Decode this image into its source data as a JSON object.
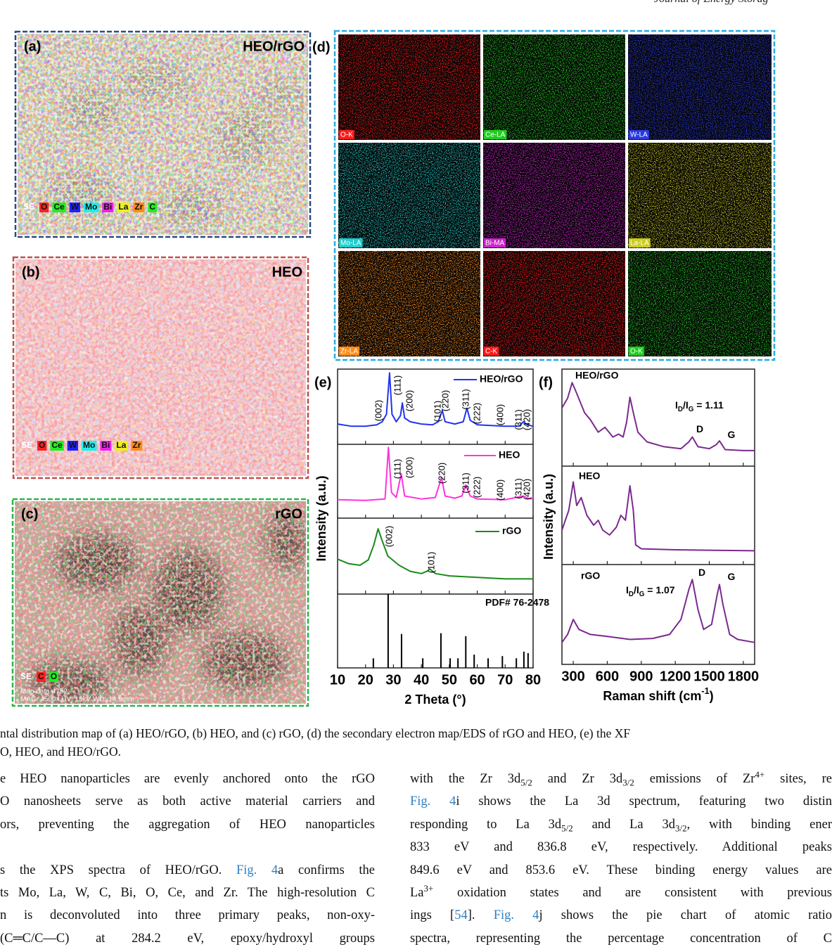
{
  "header": {
    "journal": "Journal of Energy Storag"
  },
  "panels": [
    {
      "label": "(a)",
      "title": "HEO/rGO",
      "border": "#2a4a80",
      "legend": [
        {
          "text": "SE"
        },
        {
          "text": "O",
          "color": "#ff2020"
        },
        {
          "text": "Ce",
          "color": "#20ee20"
        },
        {
          "text": "W",
          "color": "#2020ff"
        },
        {
          "text": "Mo",
          "color": "#20eeee"
        },
        {
          "text": "Bi",
          "color": "#ee20ee"
        },
        {
          "text": "La",
          "color": "#eeee20"
        },
        {
          "text": "Zr",
          "color": "#ff8a1a"
        },
        {
          "text": "C",
          "color": "#20ee20"
        }
      ]
    },
    {
      "label": "(b)",
      "title": "HEO",
      "border": "#c0504d",
      "legend": [
        {
          "text": "SE"
        },
        {
          "text": "O",
          "color": "#ff2020"
        },
        {
          "text": "Ce",
          "color": "#20ee20"
        },
        {
          "text": "W",
          "color": "#2020ff"
        },
        {
          "text": "Mo",
          "color": "#20eeee"
        },
        {
          "text": "Bi",
          "color": "#ee20ee"
        },
        {
          "text": "La",
          "color": "#eeee20"
        },
        {
          "text": "Zr",
          "color": "#ff8a1a"
        }
      ]
    },
    {
      "label": "(c)",
      "title": "rGO",
      "border": "#2db34a",
      "legend": [
        {
          "text": "SE"
        },
        {
          "text": "C",
          "color": "#ff2020"
        },
        {
          "text": "O",
          "color": "#20ee20"
        }
      ],
      "notes": [
        "Map data 4752",
        "MAG: 4500x  HV: 15kV  WD: 14.9mm"
      ]
    }
  ],
  "eds": {
    "label": "(d)",
    "border": "#29abe2",
    "tiles": [
      {
        "name": "O-K",
        "color": "#ff1a1a"
      },
      {
        "name": "Ce-LA",
        "color": "#22cc22"
      },
      {
        "name": "W-LA",
        "color": "#2a3ae0"
      },
      {
        "name": "Mo-LA",
        "color": "#22cccc"
      },
      {
        "name": "Bi-MA",
        "color": "#cc22cc"
      },
      {
        "name": "La-LA",
        "color": "#cccc22"
      },
      {
        "name": "Zr-LA",
        "color": "#ff8c1a"
      },
      {
        "name": "C-K",
        "color": "#ff1a1a"
      },
      {
        "name": "O-K",
        "color": "#22cc22"
      }
    ]
  },
  "chart_data": [
    {
      "type": "line",
      "label": "(e)",
      "xlabel": "2 Theta (°)",
      "ylabel": "Intensity (a.u.)",
      "xlim": [
        10,
        80
      ],
      "xticks": [
        10,
        20,
        30,
        40,
        50,
        60,
        70,
        80
      ],
      "ylim": [
        0,
        100
      ],
      "series": [
        {
          "name": "HEO/rGO",
          "color": "#2233ee",
          "x": [
            10,
            15,
            20,
            24,
            26,
            27.5,
            28.6,
            29.5,
            31,
            32.5,
            33.2,
            34,
            36,
            40,
            44,
            46,
            47.5,
            48.5,
            52,
            55,
            56.3,
            57.5,
            60,
            65,
            70,
            75,
            76.5,
            78,
            80
          ],
          "values": [
            27,
            24,
            24,
            26,
            30,
            40,
            95,
            40,
            30,
            38,
            55,
            35,
            30,
            27,
            26,
            30,
            45,
            30,
            27,
            30,
            48,
            32,
            26,
            25,
            24,
            24,
            30,
            26,
            24
          ]
        },
        {
          "name": "HEO",
          "color": "#ff33dd",
          "x": [
            10,
            20,
            27,
            28.2,
            29.3,
            31,
            32.8,
            34,
            40,
            45,
            47.2,
            48.5,
            52,
            54.5,
            55.9,
            57.5,
            60,
            70,
            76.5,
            78,
            80
          ],
          "values": [
            25,
            24,
            26,
            96,
            35,
            28,
            60,
            30,
            26,
            28,
            55,
            30,
            27,
            30,
            45,
            30,
            26,
            25,
            30,
            27,
            26
          ]
        },
        {
          "name": "rGO",
          "color": "#1a8a1a",
          "x": [
            10,
            14,
            18,
            21,
            23,
            24.5,
            26,
            28,
            32,
            36,
            40,
            42,
            43,
            45,
            50,
            60,
            70,
            80
          ],
          "values": [
            46,
            40,
            38,
            45,
            65,
            86,
            70,
            50,
            38,
            30,
            27,
            30,
            33,
            27,
            24,
            22,
            20,
            20
          ]
        }
      ],
      "reference": {
        "name": "PDF# 76-2478",
        "color": "#000000",
        "x": [
          22.8,
          28.1,
          32.9,
          40.5,
          47.0,
          50.3,
          53.1,
          55.9,
          58.9,
          63.9,
          69.0,
          74.0,
          76.7,
          78.2
        ],
        "values": [
          13,
          100,
          46,
          13,
          47,
          13,
          13,
          43,
          18,
          13,
          16,
          13,
          22,
          20
        ]
      },
      "annotations": [
        "(002)",
        "(111)",
        "(200)",
        "(101)",
        "(220)",
        "(311)",
        "(222)",
        "(400)",
        "(311)",
        "(420)",
        "(111)",
        "(200)",
        "(220)",
        "(311)",
        "(222)",
        "(400)",
        "(311)",
        "(420)",
        "(002)",
        "(101)"
      ]
    },
    {
      "type": "line",
      "label": "(f)",
      "ylabel": "Intensity (a.u.)",
      "xlabel_parts": [
        {
          "t": "Raman shift (cm"
        },
        {
          "t": "-1",
          "style": "sup"
        },
        {
          "t": ")"
        }
      ],
      "xlim": [
        200,
        1900
      ],
      "xticks": [
        300,
        600,
        900,
        1200,
        1500,
        1800
      ],
      "ylim": [
        0,
        100
      ],
      "series": [
        {
          "name": "HEO/rGO",
          "color": "#7a2a8e",
          "x": [
            200,
            250,
            290,
            330,
            400,
            450,
            520,
            580,
            650,
            700,
            740,
            770,
            800,
            830,
            870,
            950,
            1100,
            1250,
            1320,
            1350,
            1400,
            1500,
            1560,
            1590,
            1640,
            1800,
            1900
          ],
          "values": [
            60,
            70,
            86,
            75,
            55,
            48,
            35,
            40,
            30,
            33,
            30,
            45,
            71,
            55,
            35,
            25,
            20,
            18,
            25,
            30,
            20,
            18,
            22,
            26,
            17,
            16,
            16
          ]
        },
        {
          "name": "HEO",
          "color": "#7a2a8e",
          "x": [
            200,
            260,
            300,
            330,
            370,
            420,
            480,
            520,
            560,
            620,
            680,
            720,
            760,
            800,
            830,
            850,
            900,
            1200,
            1900
          ],
          "values": [
            35,
            55,
            84,
            60,
            68,
            50,
            40,
            45,
            35,
            30,
            38,
            50,
            45,
            80,
            55,
            20,
            16,
            15,
            14
          ]
        },
        {
          "name": "rGO",
          "color": "#7a2a8e",
          "x": [
            200,
            250,
            300,
            350,
            450,
            600,
            800,
            1000,
            1150,
            1250,
            1320,
            1350,
            1400,
            1450,
            1520,
            1570,
            1590,
            1620,
            1680,
            1750,
            1900
          ],
          "values": [
            22,
            30,
            45,
            35,
            30,
            28,
            25,
            26,
            30,
            45,
            75,
            85,
            55,
            35,
            40,
            70,
            80,
            60,
            30,
            25,
            22
          ]
        }
      ],
      "annotations": [
        [
          {
            "t": "I"
          },
          {
            "t": "D",
            "style": "sub"
          },
          {
            "t": "/I"
          },
          {
            "t": "G",
            "style": "sub"
          },
          {
            "t": " = 1.11"
          }
        ],
        [
          {
            "t": "D"
          }
        ],
        [
          {
            "t": "G"
          }
        ],
        [
          {
            "t": "D"
          }
        ],
        [
          {
            "t": "G"
          }
        ],
        [
          {
            "t": "I"
          },
          {
            "t": "D",
            "style": "sub"
          },
          {
            "t": "/I"
          },
          {
            "t": "G",
            "style": "sub"
          },
          {
            "t": " = 1.07"
          }
        ]
      ]
    }
  ],
  "caption": [
    "ntal distribution map of (a) HEO/rGO, (b) HEO, and (c) rGO, (d) the secondary electron map/EDS of rGO and HEO, (e) the XF",
    "O, HEO, and HEO/rGO."
  ],
  "body": {
    "left": [
      [
        [
          {
            "t": "e HEO nanoparticles are evenly anchored onto the rGO"
          }
        ],
        [
          {
            "t": "O nanosheets serve as both active material carriers and"
          }
        ],
        [
          {
            "t": "ors, preventing the aggregation of HEO nanoparticles"
          }
        ]
      ],
      [
        [
          {
            "t": "s the XPS spectra of HEO/rGO. "
          },
          {
            "t": "Fig. 4",
            "style": "link"
          },
          {
            "t": "a confirms the"
          }
        ],
        [
          {
            "t": "ts Mo, La, W, C, Bi, O, Ce, and Zr. The high-resolution C"
          }
        ],
        [
          {
            "t": "n is deconvoluted into three primary peaks, non-oxy-"
          }
        ],
        [
          {
            "t": "(C═C/C—C) at 284.2 eV, epoxy/hydroxyl groups"
          }
        ]
      ]
    ],
    "right": [
      [
        {
          "t": "with the Zr 3d"
        },
        {
          "t": "5/2",
          "style": "sub"
        },
        {
          "t": " and Zr 3d"
        },
        {
          "t": "3/2",
          "style": "sub"
        },
        {
          "t": " emissions of Zr"
        },
        {
          "t": "4+",
          "style": "sup"
        },
        {
          "t": " sites, re"
        }
      ],
      [
        {
          "t": "Fig. 4",
          "style": "link"
        },
        {
          "t": "i shows the La 3d spectrum, featuring two distin"
        }
      ],
      [
        {
          "t": "responding to La 3d"
        },
        {
          "t": "5/2",
          "style": "sub"
        },
        {
          "t": " and La 3d"
        },
        {
          "t": "3/2",
          "style": "sub"
        },
        {
          "t": ", with binding ener"
        }
      ],
      [
        {
          "t": "833 eV and 836.8 eV, respectively. Additional peaks"
        }
      ],
      [
        {
          "t": "849.6 eV and 853.6 eV. These binding energy values are"
        }
      ],
      [
        {
          "t": "La"
        },
        {
          "t": "3+",
          "style": "sup"
        },
        {
          "t": " oxidation states and are consistent with previous"
        }
      ],
      [
        {
          "t": "ings ["
        },
        {
          "t": "54",
          "style": "link"
        },
        {
          "t": "]. "
        },
        {
          "t": "Fig. 4",
          "style": "link"
        },
        {
          "t": "j shows the pie chart of atomic ratio"
        }
      ],
      [
        {
          "t": "spectra, representing the percentage concentration of C"
        }
      ]
    ]
  }
}
